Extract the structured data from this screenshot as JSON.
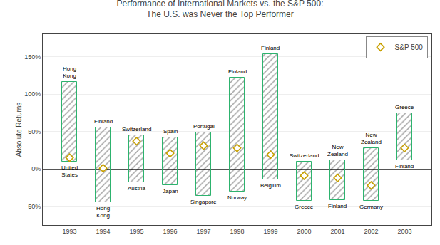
{
  "chart_data": {
    "type": "range_bar",
    "title": "Performance of International Markets vs. the S&P 500:\nThe U.S. was Never the Top Performer",
    "ylabel": "Absolute Returns",
    "x": [
      1993,
      1994,
      1995,
      1996,
      1997,
      1998,
      1999,
      2000,
      2001,
      2002,
      2003
    ],
    "xlim": [
      1992.2,
      2003.8
    ],
    "xticks": [
      1993,
      1994,
      1995,
      1996,
      1997,
      1998,
      1999,
      2000,
      2001,
      2002,
      2003
    ],
    "high": [
      116,
      55,
      45,
      42,
      49,
      122,
      153,
      10,
      12,
      28,
      74
    ],
    "low": [
      10,
      -45,
      -18,
      -22,
      -36,
      -30,
      -14,
      -43,
      -42,
      -43,
      12
    ],
    "high_labels": [
      "Hong\nKong",
      "Finland",
      "Switzerland",
      "Spain",
      "Portugal",
      "Finland",
      "Finland",
      "Switzerland",
      "New\nZealand",
      "New\nZealand",
      "Greece"
    ],
    "low_labels": [
      "United\nStates",
      "Hong\nKong",
      "Austria",
      "Japan",
      "Singapore",
      "Norway",
      "Belgium",
      "Greece",
      "Finland",
      "Germany",
      "Finland"
    ],
    "color": "#2db36e",
    "series": [
      {
        "name": "S&P 500",
        "type": "scatter",
        "marker": "diamond",
        "color": "#c8a000",
        "values": [
          15,
          1,
          37,
          21,
          31,
          28,
          19,
          -9,
          -12,
          -22,
          28
        ]
      }
    ],
    "ylim": [
      -75,
      180
    ],
    "yticks": [
      {
        "value": -50,
        "label": "-50%"
      },
      {
        "value": 0,
        "label": "0%"
      },
      {
        "value": 50,
        "label": "50%"
      },
      {
        "value": 100,
        "label": "100%"
      },
      {
        "value": 150,
        "label": "150%"
      }
    ],
    "grid": "y",
    "legend": "upper right"
  }
}
